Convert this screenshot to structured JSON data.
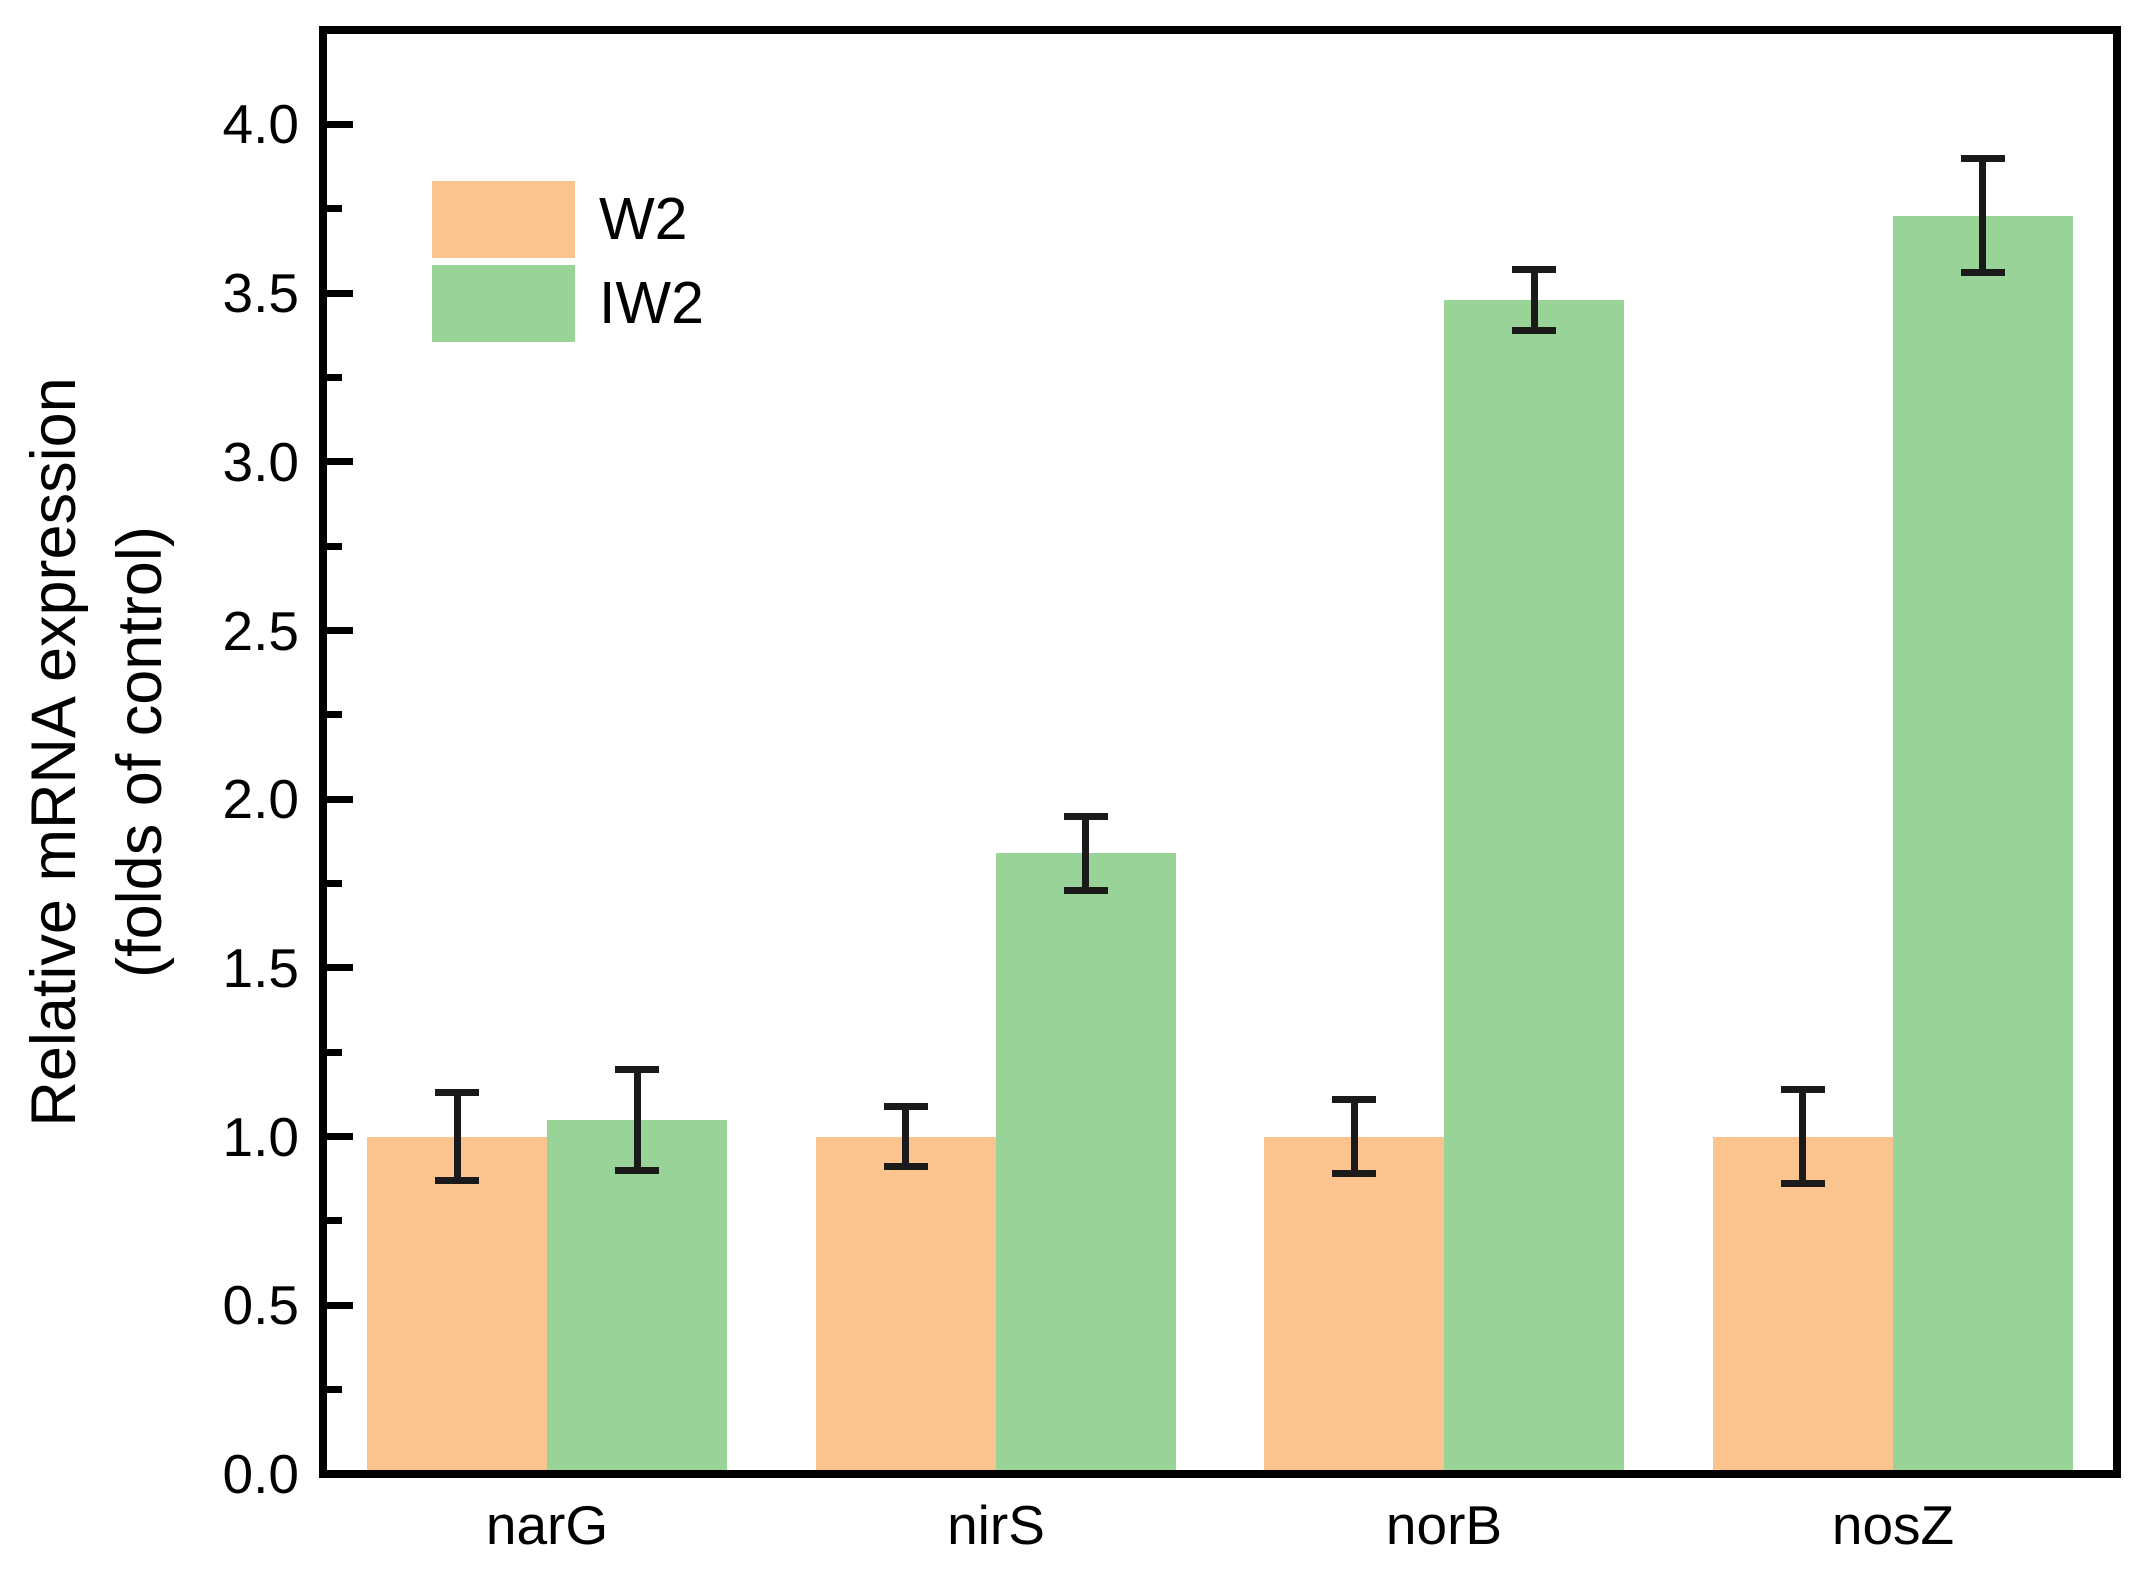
{
  "figure": {
    "background": "#ffffff",
    "axis_color": "#000000",
    "error_bar_color": "#1a1a1a"
  },
  "chart_data": {
    "type": "bar",
    "title": "",
    "xlabel": "",
    "ylabel_line1": "Relative mRNA expression",
    "ylabel_line2": "(folds of control)",
    "categories": [
      "narG",
      "nirS",
      "norB",
      "nosZ"
    ],
    "series": [
      {
        "name": "W2",
        "color": "#FBC38D",
        "values": [
          1.0,
          1.0,
          1.0,
          1.0
        ],
        "errors": [
          0.13,
          0.09,
          0.11,
          0.14
        ]
      },
      {
        "name": "IW2",
        "color": "#9AD398",
        "values": [
          1.05,
          1.84,
          3.48,
          3.73
        ],
        "errors": [
          0.15,
          0.11,
          0.09,
          0.17
        ]
      }
    ],
    "ylim": [
      0,
      4.28
    ],
    "ytick_step": 0.5,
    "yminor_step": 0.25,
    "ytick_decimals": 1,
    "grid": false,
    "legend_position": "top-left"
  }
}
